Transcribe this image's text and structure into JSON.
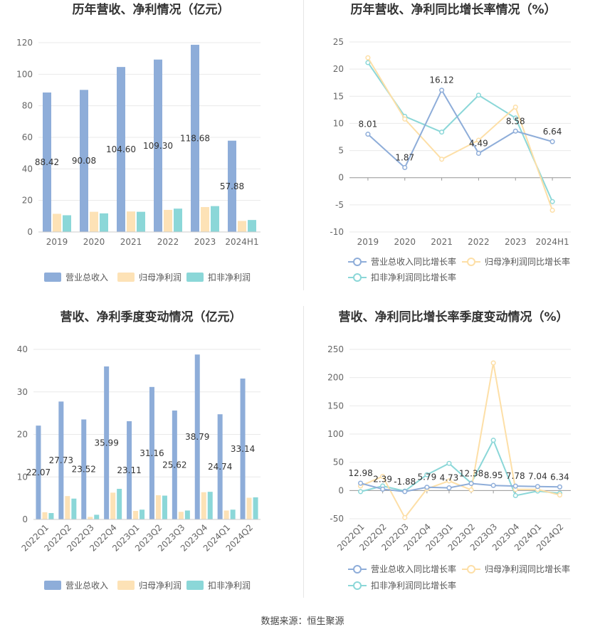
{
  "colors": {
    "revenue": "#8eadd9",
    "parent_profit": "#fde2b6",
    "deducted_profit": "#8bd7d8",
    "revenue_line": "#8eadd9",
    "parent_line": "#fddfa7",
    "deducted_line": "#8bd7d8",
    "grid": "#e9e9e9",
    "axis": "#cccccc"
  },
  "footer": {
    "source": "数据来源：恒生聚源"
  },
  "chart_data": [
    {
      "id": "annual-bar",
      "type": "bar",
      "title": "历年营收、净利情况（亿元）",
      "categories": [
        "2019",
        "2020",
        "2021",
        "2022",
        "2023",
        "2024H1"
      ],
      "ylim": [
        0,
        120
      ],
      "yticks": [
        0,
        20,
        40,
        60,
        80,
        100,
        120
      ],
      "series": [
        {
          "name": "营业总收入",
          "values": [
            88.42,
            90.08,
            104.6,
            109.3,
            118.68,
            57.88
          ],
          "labels": [
            "88.42",
            "90.08",
            "104.60",
            "109.30",
            "118.68",
            "57.88"
          ]
        },
        {
          "name": "归母净利润",
          "values": [
            11.5,
            12.8,
            13.0,
            14.0,
            15.8,
            7.0
          ]
        },
        {
          "name": "扣非净利润",
          "values": [
            10.6,
            11.8,
            12.8,
            14.8,
            16.4,
            7.6
          ]
        }
      ],
      "legend": "bottom",
      "grid": true
    },
    {
      "id": "annual-line",
      "type": "line",
      "title": "历年营收、净利同比增长率情况（%）",
      "categories": [
        "2019",
        "2020",
        "2021",
        "2022",
        "2023",
        "2024H1"
      ],
      "ylim": [
        -10,
        25
      ],
      "yticks": [
        -10,
        -5,
        0,
        5,
        10,
        15,
        20,
        25
      ],
      "series": [
        {
          "name": "营业总收入同比增长率",
          "values": [
            8.01,
            1.87,
            16.12,
            4.49,
            8.58,
            6.64
          ],
          "labels": [
            "8.01",
            "1.87",
            "16.12",
            "4.49",
            "8.58",
            "6.64"
          ]
        },
        {
          "name": "归母净利润同比增长率",
          "values": [
            22.1,
            10.8,
            3.4,
            6.9,
            13.0,
            -6.0
          ]
        },
        {
          "name": "扣非净利润同比增长率",
          "values": [
            21.2,
            11.3,
            8.4,
            15.2,
            11.0,
            -4.4
          ]
        }
      ],
      "legend": "bottom",
      "grid": true
    },
    {
      "id": "quarterly-bar",
      "type": "bar",
      "title": "营收、净利季度变动情况（亿元）",
      "categories": [
        "2022Q1",
        "2022Q2",
        "2022Q3",
        "2022Q4",
        "2023Q1",
        "2023Q2",
        "2023Q3",
        "2023Q4",
        "2024Q1",
        "2024Q2"
      ],
      "ylim": [
        0,
        40
      ],
      "yticks": [
        0,
        10,
        20,
        30,
        40
      ],
      "series": [
        {
          "name": "营业总收入",
          "values": [
            22.07,
            27.73,
            23.52,
            35.99,
            23.11,
            31.16,
            25.62,
            38.79,
            24.74,
            33.14
          ],
          "labels": [
            "22.07",
            "27.73",
            "23.52",
            "35.99",
            "23.11",
            "31.16",
            "25.62",
            "38.79",
            "24.74",
            "33.14"
          ]
        },
        {
          "name": "归母净利润",
          "values": [
            1.7,
            5.5,
            0.6,
            6.3,
            2.0,
            5.7,
            1.8,
            6.4,
            2.1,
            5.1
          ]
        },
        {
          "name": "扣非净利润",
          "values": [
            1.5,
            4.9,
            1.1,
            7.2,
            2.3,
            5.6,
            2.1,
            6.5,
            2.3,
            5.2
          ]
        }
      ],
      "legend": "bottom",
      "grid": true
    },
    {
      "id": "quarterly-line",
      "type": "line",
      "title": "营收、净利同比增长率季度变动情况（%）",
      "categories": [
        "2022Q1",
        "2022Q2",
        "2022Q3",
        "2022Q4",
        "2023Q1",
        "2023Q2",
        "2023Q3",
        "2023Q4",
        "2024Q1",
        "2024Q2"
      ],
      "ylim": [
        -50,
        250
      ],
      "yticks": [
        -50,
        0,
        50,
        100,
        150,
        200,
        250
      ],
      "series": [
        {
          "name": "营业总收入同比增长率",
          "values": [
            12.98,
            2.39,
            -1.88,
            5.79,
            4.73,
            12.38,
            8.95,
            7.78,
            7.04,
            6.34
          ],
          "labels": [
            "12.98",
            "2.39",
            "-1.88",
            "5.79",
            "4.73",
            "12.38",
            "8.95",
            "7.78",
            "7.04",
            "6.34"
          ]
        },
        {
          "name": "归母净利润同比增长率",
          "values": [
            8,
            25,
            -48,
            3,
            17,
            1,
            226,
            2,
            2,
            -8
          ]
        },
        {
          "name": "扣非净利润同比增长率",
          "values": [
            -2,
            8,
            -1,
            28,
            48,
            13,
            89,
            -9,
            -1,
            -5
          ]
        }
      ],
      "legend": "bottom",
      "grid": true
    }
  ]
}
